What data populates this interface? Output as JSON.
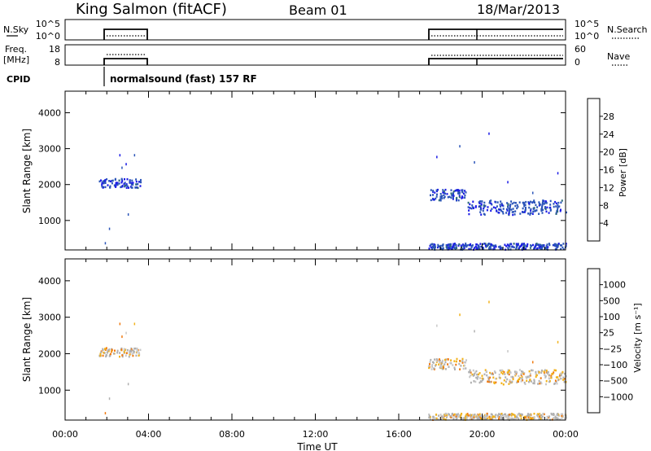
{
  "header": {
    "station": "King Salmon (fitACF)",
    "beam": "Beam 01",
    "date": "18/Mar/2013"
  },
  "strips": {
    "nsky": {
      "label": "N.Sky",
      "ticks": [
        "10^5",
        "10^0"
      ]
    },
    "nsearch": {
      "label": "N.Search",
      "ticks": [
        "10^5",
        "10^0"
      ]
    },
    "freq": {
      "label_line1": "Freq.",
      "label_line2": "[MHz]",
      "ticks": [
        "18",
        "8"
      ]
    },
    "nave": {
      "label": "Nave",
      "ticks": [
        "60",
        "0"
      ]
    },
    "cpid": {
      "label": "CPID",
      "annotation": "normalsound (fast) 157 RF"
    }
  },
  "colors": {
    "power_scale": [
      "#1a1ae6",
      "#2b55b8",
      "#2e6c78",
      "#3f8f5c",
      "#7fd22a",
      "#f2b21a",
      "#f07a10",
      "#ef4a0c",
      "#e81010"
    ],
    "velocity_scale": [
      "#1a3ab5",
      "#2e54b0",
      "#3d6e8c",
      "#3f8f5c",
      "#c8c8c8",
      "#b0b0b0",
      "#f2b21a",
      "#f07a10",
      "#ef4a0c",
      "#e81010"
    ]
  },
  "chart_data": [
    {
      "type": "heatmap",
      "title": "Power",
      "xlabel": "Time UT",
      "ylabel": "Slant Range [km]",
      "xlim": [
        "00:00",
        "24:00"
      ],
      "ylim": [
        180,
        4600
      ],
      "x_tick_labels": [
        "00:00",
        "04:00",
        "08:00",
        "12:00",
        "16:00",
        "20:00",
        "00:00"
      ],
      "y_tick_labels": [
        "1000",
        "2000",
        "3000",
        "4000"
      ],
      "colorbar": {
        "label": "Power [dB]",
        "tick_labels": [
          "4",
          "8",
          "12",
          "16",
          "20",
          "24",
          "28"
        ],
        "range": [
          0,
          32
        ]
      },
      "echo_regions": [
        {
          "t_start": 1.6,
          "t_end": 3.6,
          "range_start": 1900,
          "range_end": 2150,
          "typical_value": 6
        },
        {
          "t_start": 17.4,
          "t_end": 19.2,
          "range_start": 1550,
          "range_end": 1850,
          "typical_value": 6
        },
        {
          "t_start": 19.3,
          "t_end": 24.0,
          "range_start": 1150,
          "range_end": 1550,
          "typical_value": 7
        },
        {
          "t_start": 17.4,
          "t_end": 24.0,
          "range_start": 180,
          "range_end": 350,
          "typical_value": 6
        }
      ]
    },
    {
      "type": "heatmap",
      "title": "Velocity",
      "xlabel": "Time UT",
      "ylabel": "Slant Range [km]",
      "xlim": [
        "00:00",
        "24:00"
      ],
      "ylim": [
        180,
        4600
      ],
      "x_tick_labels": [
        "00:00",
        "04:00",
        "08:00",
        "12:00",
        "16:00",
        "20:00",
        "00:00"
      ],
      "y_tick_labels": [
        "1000",
        "2000",
        "3000",
        "4000"
      ],
      "colorbar": {
        "label": "Velocity [m s⁻¹]",
        "tick_labels": [
          "1000",
          "500",
          "100",
          "25",
          "−25",
          "−100",
          "−500",
          "−1000"
        ]
      },
      "echo_regions": [
        {
          "t_start": 1.6,
          "t_end": 3.6,
          "range_start": 1900,
          "range_end": 2150,
          "typical_value": -60
        },
        {
          "t_start": 17.4,
          "t_end": 19.2,
          "range_start": 1550,
          "range_end": 1850,
          "typical_value": -200
        },
        {
          "t_start": 19.3,
          "t_end": 24.0,
          "range_start": 1150,
          "range_end": 1550,
          "typical_value": -300
        },
        {
          "t_start": 17.4,
          "t_end": 24.0,
          "range_start": 180,
          "range_end": 350,
          "typical_value": -150
        }
      ]
    }
  ]
}
